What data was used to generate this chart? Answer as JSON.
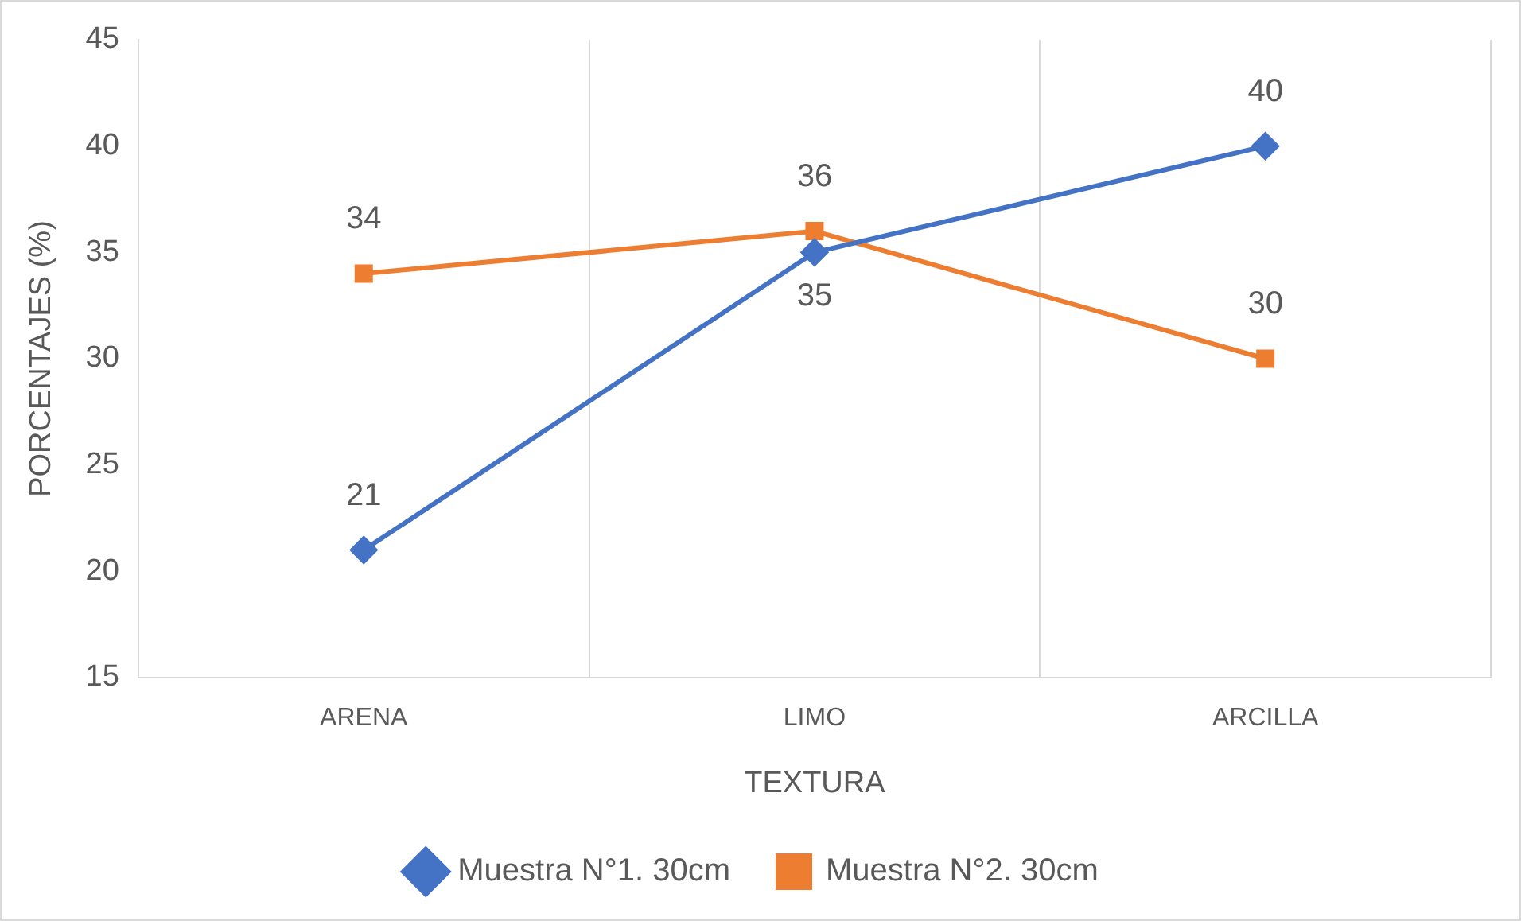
{
  "chart_data": {
    "type": "line",
    "xlabel": "TEXTURA",
    "ylabel": "PORCENTAJES (%)",
    "categories": [
      "ARENA",
      "LIMO",
      "ARCILLA"
    ],
    "series": [
      {
        "name": "Muestra N°1. 30cm",
        "color": "#4472c4",
        "values": [
          21,
          35,
          40
        ],
        "marker": "diamond"
      },
      {
        "name": "Muestra N°2. 30cm",
        "color": "#ed7d31",
        "values": [
          34,
          36,
          30
        ],
        "marker": "square"
      }
    ],
    "ylim": [
      15,
      45
    ],
    "yticks": [
      15,
      20,
      25,
      30,
      35,
      40,
      45
    ],
    "grid": "x",
    "legend": "bottom",
    "data_labels": true,
    "line_style": "solid"
  }
}
